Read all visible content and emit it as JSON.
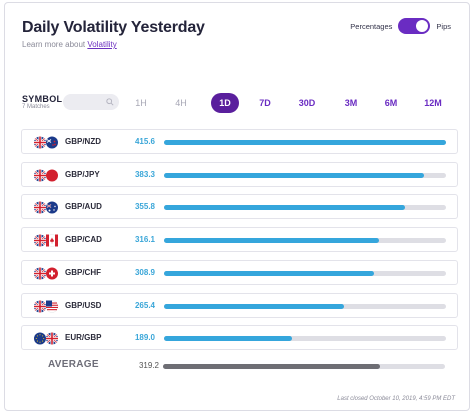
{
  "header": {
    "title": "Daily Volatility Yesterday",
    "subtitle_prefix": "Learn more about ",
    "subtitle_link": "Volatility"
  },
  "toggle": {
    "left_label": "Percentages",
    "right_label": "Pips",
    "state": "Pips",
    "accent_color": "#6a2cc2"
  },
  "filters": {
    "symbol_label": "SYMBOL",
    "matches": "7 Matches",
    "search_placeholder": ""
  },
  "periods": [
    {
      "label": "1H",
      "active": false,
      "dim": true
    },
    {
      "label": "4H",
      "active": false,
      "dim": true
    },
    {
      "label": "1D",
      "active": true,
      "dim": false
    },
    {
      "label": "7D",
      "active": false,
      "dim": false
    },
    {
      "label": "30D",
      "active": false,
      "dim": false
    },
    {
      "label": "3M",
      "active": false,
      "dim": false
    },
    {
      "label": "6M",
      "active": false,
      "dim": false
    },
    {
      "label": "12M",
      "active": false,
      "dim": false
    }
  ],
  "rows": [
    {
      "pair": "GBP/NZD",
      "value": "415.6",
      "fraction": 1.0,
      "flags": [
        "uk",
        "nz"
      ]
    },
    {
      "pair": "GBP/JPY",
      "value": "383.3",
      "fraction": 0.922,
      "flags": [
        "uk",
        "jp"
      ]
    },
    {
      "pair": "GBP/AUD",
      "value": "355.8",
      "fraction": 0.856,
      "flags": [
        "uk",
        "au"
      ]
    },
    {
      "pair": "GBP/CAD",
      "value": "316.1",
      "fraction": 0.761,
      "flags": [
        "uk",
        "ca"
      ]
    },
    {
      "pair": "GBP/CHF",
      "value": "308.9",
      "fraction": 0.743,
      "flags": [
        "uk",
        "ch"
      ]
    },
    {
      "pair": "GBP/USD",
      "value": "265.4",
      "fraction": 0.639,
      "flags": [
        "uk",
        "us"
      ]
    },
    {
      "pair": "EUR/GBP",
      "value": "189.0",
      "fraction": 0.455,
      "flags": [
        "eu",
        "uk"
      ]
    }
  ],
  "average": {
    "label": "AVERAGE",
    "value": "319.2",
    "fraction": 0.768
  },
  "footer": {
    "last_closed": "Last closed October 10, 2019, 4:59 PM EDT"
  },
  "colors": {
    "bar": "#35a6dc",
    "value_text": "#3aa6d8",
    "track": "#dedee4",
    "average_bar": "#6e6e74",
    "active_period": "#5a1f9d"
  }
}
